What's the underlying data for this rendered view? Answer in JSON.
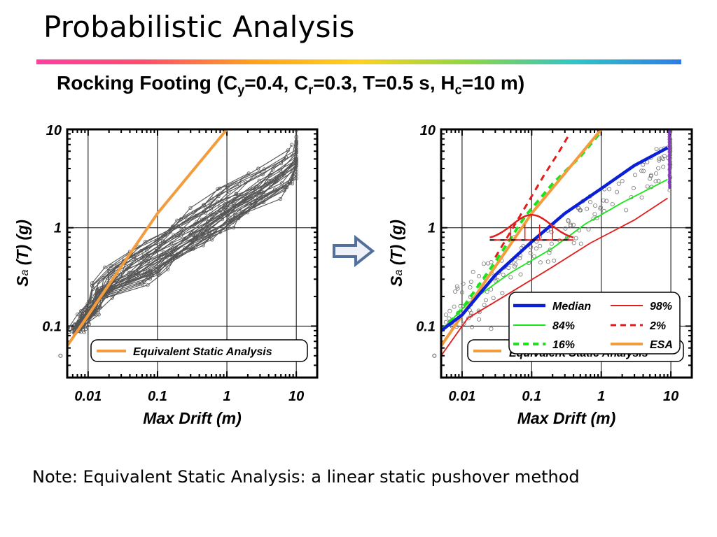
{
  "slide": {
    "title": "Probabilistic Analysis",
    "subtitle": {
      "prefix": "Rocking Footing (C",
      "sub1": "y",
      "mid1": "=0.4, C",
      "sub2": "r",
      "mid2": "=0.3, T=0.5 s, H",
      "sub3": "c",
      "suffix": "=10 m)"
    },
    "note": "Note: Equivalent Static Analysis: a linear static pushover method",
    "arrow_icon": "right-arrow-icon"
  },
  "colors": {
    "esa": "#f39c3d",
    "individual": "#555555",
    "median": "#0a1fd6",
    "p84_16": "#19e619",
    "p98_2": "#e21d1d",
    "points": "#777777"
  },
  "chart_data": [
    {
      "type": "line",
      "title": "",
      "xlabel": "Max Drift (m)",
      "ylabel_main": "S",
      "ylabel_sub": "a",
      "ylabel_rest": " (T) (g)",
      "x_scale": "log",
      "y_scale": "log",
      "xlim": [
        0.005,
        20
      ],
      "ylim": [
        0.03,
        10
      ],
      "x_ticks": [
        0.01,
        0.1,
        1,
        10
      ],
      "x_tick_labels": [
        "0.01",
        "0.1",
        "1",
        "10"
      ],
      "y_ticks": [
        0.1,
        1,
        10
      ],
      "y_tick_labels": [
        "0.1",
        "1",
        "10"
      ],
      "grid": true,
      "legend_position": "bottom-right",
      "legend": [
        "Equivalent Static Analysis"
      ],
      "series": [
        {
          "name": "Equivalent Static Analysis",
          "x": [
            0.004,
            0.1,
            1.0
          ],
          "y": [
            0.05,
            1.4,
            10
          ]
        }
      ],
      "individual_runs": 40
    },
    {
      "type": "line",
      "title": "",
      "xlabel": "Max Drift (m)",
      "ylabel_main": "S",
      "ylabel_sub": "a",
      "ylabel_rest": " (T) (g)",
      "x_scale": "log",
      "y_scale": "log",
      "xlim": [
        0.005,
        20
      ],
      "ylim": [
        0.03,
        10
      ],
      "x_ticks": [
        0.01,
        0.1,
        1,
        10
      ],
      "x_tick_labels": [
        "0.01",
        "0.1",
        "1",
        "10"
      ],
      "y_ticks": [
        0.1,
        1,
        10
      ],
      "y_tick_labels": [
        "0.1",
        "1",
        "10"
      ],
      "grid": true,
      "legend_position": "bottom-right",
      "legend": [
        "Median",
        "98%",
        "84%",
        "2%",
        "16%",
        "ESA"
      ],
      "background_legend_label": "Equivalent Static Analysis",
      "series": [
        {
          "name": "Median",
          "x": [
            0.005,
            0.01,
            0.03,
            0.1,
            0.3,
            1,
            3,
            9
          ],
          "y": [
            0.09,
            0.13,
            0.33,
            0.72,
            1.4,
            2.5,
            4.3,
            6.5
          ]
        },
        {
          "name": "84%",
          "x": [
            0.005,
            0.012,
            0.05,
            0.2,
            0.6,
            2,
            9
          ],
          "y": [
            0.09,
            0.17,
            0.35,
            0.62,
            1.1,
            1.8,
            3.1
          ]
        },
        {
          "name": "16%",
          "x": [
            0.005,
            0.01,
            0.03,
            0.08,
            0.2,
            0.5,
            1.0
          ],
          "y": [
            0.09,
            0.15,
            0.45,
            1.3,
            2.8,
            5.3,
            9.5
          ]
        },
        {
          "name": "98%",
          "x": [
            0.005,
            0.012,
            0.05,
            0.2,
            0.7,
            3,
            9
          ],
          "y": [
            0.05,
            0.12,
            0.22,
            0.4,
            0.7,
            1.2,
            2.0
          ]
        },
        {
          "name": "2%",
          "x": [
            0.03,
            0.08,
            0.15,
            0.25,
            0.35
          ],
          "y": [
            0.5,
            1.6,
            3.4,
            6.0,
            9.0
          ]
        },
        {
          "name": "ESA",
          "x": [
            0.004,
            0.1,
            1.0
          ],
          "y": [
            0.05,
            1.4,
            10
          ]
        }
      ],
      "vertical_line": {
        "x": 9.5,
        "y_range": [
          2.5,
          10
        ]
      },
      "distribution_at_sa": {
        "sa": 0.75,
        "mode_drift": 0.1,
        "drift_range": [
          0.025,
          0.4
        ]
      },
      "scatter_points": 180
    }
  ]
}
